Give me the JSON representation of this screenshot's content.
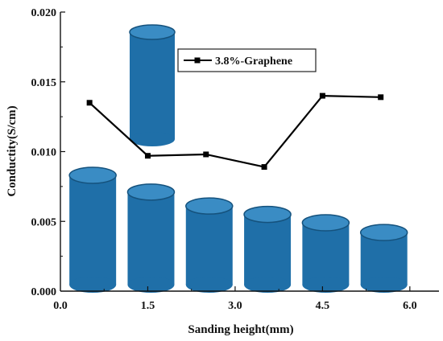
{
  "chart_data": {
    "type": "line",
    "xlabel": "Sanding height(mm)",
    "ylabel": "Conductity(S/cm)",
    "xlim": [
      0.0,
      6.5
    ],
    "ylim": [
      0.0,
      0.02
    ],
    "x_ticks": [
      "0.0",
      "1.5",
      "3.0",
      "4.5",
      "6.0"
    ],
    "y_ticks": [
      "0.000",
      "0.005",
      "0.010",
      "0.015",
      "0.020"
    ],
    "legend_position": "top-center",
    "grid": false,
    "series": [
      {
        "name": "3.8%-Graphene",
        "marker": "square",
        "color": "#000000",
        "x": [
          0.5,
          1.5,
          2.5,
          3.5,
          4.5,
          5.5
        ],
        "y": [
          0.0135,
          0.0097,
          0.0098,
          0.0089,
          0.014,
          0.0139
        ]
      }
    ],
    "cylinders": {
      "color": "#1f6fa8",
      "note_free_values_illustrative": true,
      "x": [
        0.5,
        1.5,
        2.5,
        3.5,
        4.5,
        5.5
      ],
      "heights": [
        0.0083,
        0.0071,
        0.0061,
        0.0055,
        0.0049,
        0.0042
      ],
      "inset_height": 0.0145
    }
  }
}
